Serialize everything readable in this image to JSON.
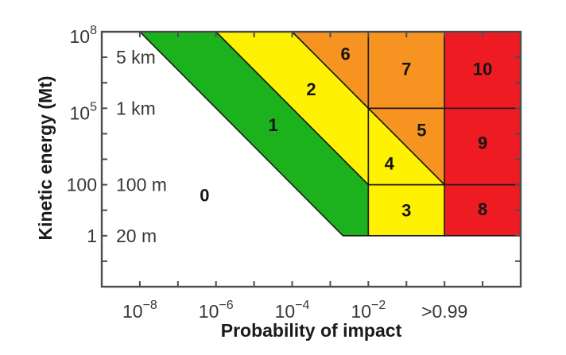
{
  "figure": {
    "background": "#ffffff"
  },
  "chart_data": {
    "type": "area",
    "subtype": "torino-impact-hazard-scale",
    "title": "",
    "xlabel": "Probability of impact",
    "ylabel": "Kinetic energy (Mt)",
    "x_scale": "log10",
    "y_scale": "log10",
    "x_range_log10": [
      -9,
      2
    ],
    "y_range_log10": [
      -2,
      8
    ],
    "grid": false,
    "legend": "none",
    "colors": {
      "green": "#1cb21e",
      "yellow": "#fef200",
      "orange": "#f79421",
      "red": "#ee1b22",
      "zone_border": "#1a1a1a",
      "axis": "#4d4d4d",
      "tick_text": "#383838",
      "zone_text": "#151515"
    },
    "x_ticks_log10": [
      -8,
      -7,
      -6,
      -5,
      -4,
      -3,
      -2,
      -1,
      0,
      1
    ],
    "y_ticks_log10": [
      -1,
      0,
      1,
      2,
      3,
      4,
      5,
      6,
      7
    ],
    "x_tick_labels": [
      {
        "log10": -8,
        "text": "10",
        "sup": "−8"
      },
      {
        "log10": -6,
        "text": "10",
        "sup": "−6"
      },
      {
        "log10": -4,
        "text": "10",
        "sup": "−4"
      },
      {
        "log10": -2,
        "text": "10",
        "sup": "−2"
      },
      {
        "log10": 0,
        "text": ">0.99",
        "sup": ""
      }
    ],
    "y_tick_labels": [
      {
        "log10": 8,
        "text": "10",
        "sup": "8"
      },
      {
        "log10": 5,
        "text": "10",
        "sup": "5"
      },
      {
        "log10": 2,
        "text": "100",
        "sup": ""
      },
      {
        "log10": 0,
        "text": "1",
        "sup": ""
      }
    ],
    "diameter_labels": [
      {
        "text": "5 km",
        "log10_energy": 7
      },
      {
        "text": "1 km",
        "log10_energy": 5
      },
      {
        "text": "100 m",
        "log10_energy": 2
      },
      {
        "text": "20 m",
        "log10_energy": 0
      }
    ],
    "zones": [
      {
        "value": 0,
        "color": "white",
        "label_at": [
          -6.3,
          1.6
        ],
        "polygon": null
      },
      {
        "value": 1,
        "color": "green",
        "label_at": [
          -4.5,
          4.35
        ],
        "polygon": [
          [
            -8,
            8
          ],
          [
            -6,
            8
          ],
          [
            -2,
            2
          ],
          [
            -2,
            0
          ],
          [
            -2.667,
            0
          ]
        ]
      },
      {
        "value": 2,
        "color": "yellow",
        "label_at": [
          -3.5,
          5.75
        ],
        "polygon": [
          [
            -6,
            8
          ],
          [
            -4,
            8
          ],
          [
            -2,
            5
          ],
          [
            -2,
            2
          ]
        ]
      },
      {
        "value": 3,
        "color": "yellow",
        "label_at": [
          -1,
          1.0
        ],
        "polygon": [
          [
            -2,
            2
          ],
          [
            0,
            2
          ],
          [
            0,
            0
          ],
          [
            -2,
            0
          ]
        ]
      },
      {
        "value": 4,
        "color": "yellow",
        "label_at": [
          -1.45,
          2.85
        ],
        "polygon": [
          [
            -2,
            5
          ],
          [
            0,
            2
          ],
          [
            -2,
            2
          ]
        ]
      },
      {
        "value": 5,
        "color": "orange",
        "label_at": [
          -0.6,
          4.15
        ],
        "polygon": [
          [
            -2,
            5
          ],
          [
            0,
            5
          ],
          [
            0,
            2
          ]
        ]
      },
      {
        "value": 6,
        "color": "orange",
        "label_at": [
          -2.6,
          7.15
        ],
        "polygon": [
          [
            -4,
            8
          ],
          [
            -2,
            8
          ],
          [
            -2,
            5
          ]
        ]
      },
      {
        "value": 7,
        "color": "orange",
        "label_at": [
          -1,
          6.55
        ],
        "polygon": [
          [
            -2,
            8
          ],
          [
            0,
            8
          ],
          [
            0,
            5
          ],
          [
            -2,
            5
          ]
        ]
      },
      {
        "value": 8,
        "color": "red",
        "label_at": [
          1,
          1.05
        ],
        "polygon": [
          [
            0,
            2
          ],
          [
            2,
            2
          ],
          [
            2,
            0
          ],
          [
            0,
            0
          ]
        ]
      },
      {
        "value": 9,
        "color": "red",
        "label_at": [
          1,
          3.65
        ],
        "polygon": [
          [
            0,
            5
          ],
          [
            2,
            5
          ],
          [
            2,
            2
          ],
          [
            0,
            2
          ]
        ]
      },
      {
        "value": 10,
        "color": "red",
        "label_at": [
          1,
          6.55
        ],
        "polygon": [
          [
            0,
            8
          ],
          [
            2,
            8
          ],
          [
            2,
            5
          ],
          [
            0,
            5
          ]
        ]
      }
    ]
  }
}
